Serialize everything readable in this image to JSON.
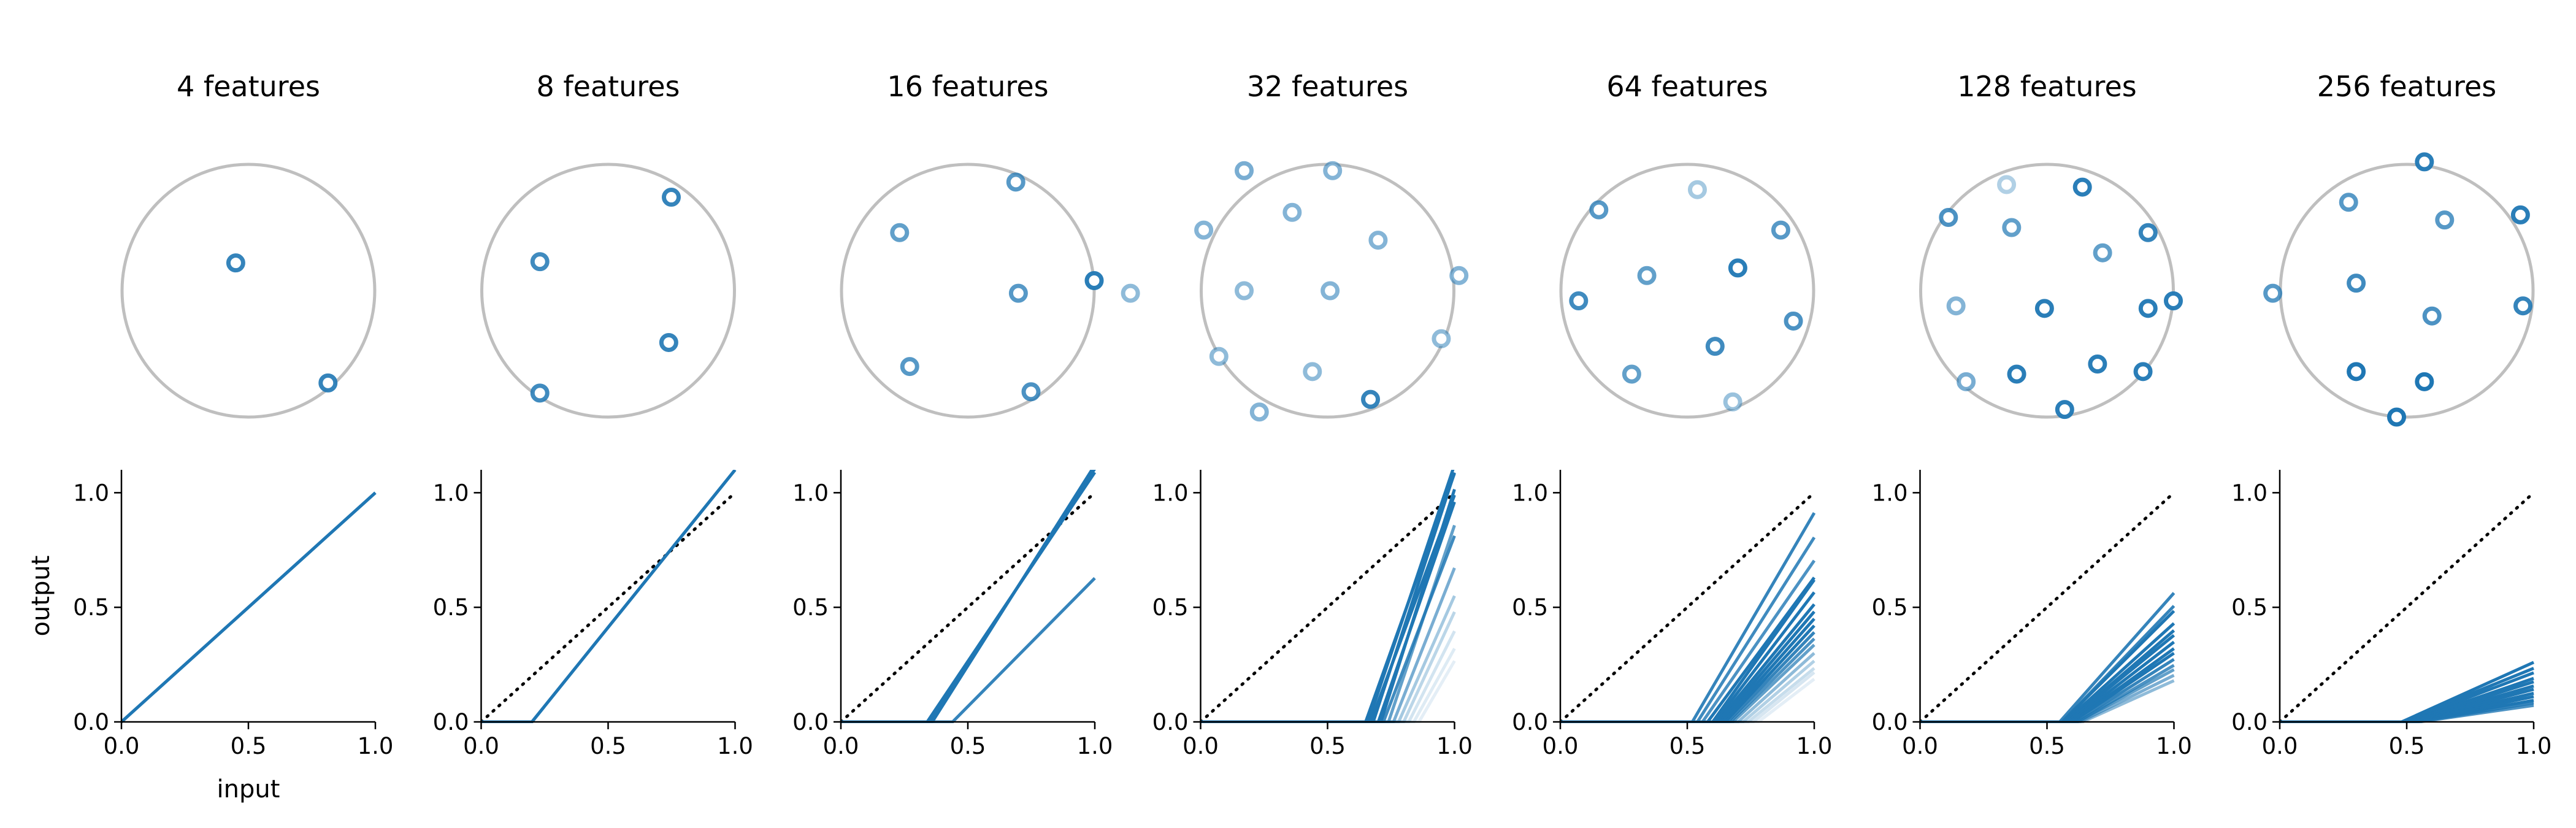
{
  "colors": {
    "accent": "#1f77b4",
    "circle": "#bfbfbf",
    "axis": "#000000",
    "identity": "#000000"
  },
  "shared": {
    "xlabel": "input",
    "ylabel": "output",
    "xticks": [
      "0.0",
      "0.5",
      "1.0"
    ],
    "yticks": [
      "0.0",
      "0.5",
      "1.0"
    ],
    "xlim": [
      0,
      1
    ],
    "ylim": [
      0,
      1.1
    ]
  },
  "chart_data": [
    {
      "title": "4 features",
      "type": "scatter+line",
      "identity_line": false,
      "points": [
        {
          "x": -0.1,
          "y": 0.22,
          "o": 0.9
        },
        {
          "x": 0.63,
          "y": -0.73,
          "o": 0.9
        }
      ],
      "lines": [
        {
          "t": 0.0,
          "s": 1.0,
          "o": 1.0
        },
        {
          "t": 0.0,
          "s": 1.0,
          "o": 1.0
        }
      ]
    },
    {
      "title": "8 features",
      "type": "scatter+line",
      "identity_line": true,
      "points": [
        {
          "x": -0.54,
          "y": 0.23,
          "o": 0.85
        },
        {
          "x": 0.5,
          "y": 0.74,
          "o": 0.9
        },
        {
          "x": 0.48,
          "y": -0.41,
          "o": 0.9
        },
        {
          "x": -0.54,
          "y": -0.81,
          "o": 0.85
        }
      ],
      "lines": [
        {
          "t": 0.2,
          "s": 1.375,
          "o": 1.0
        },
        {
          "t": 0.2,
          "s": 1.375,
          "o": 1.0
        }
      ]
    },
    {
      "title": "16 features",
      "type": "scatter+line",
      "identity_line": true,
      "points": [
        {
          "x": -0.54,
          "y": 0.46,
          "o": 0.7
        },
        {
          "x": 0.38,
          "y": 0.86,
          "o": 0.75
        },
        {
          "x": 1.0,
          "y": 0.08,
          "o": 0.95
        },
        {
          "x": 0.4,
          "y": -0.02,
          "o": 0.75
        },
        {
          "x": -0.46,
          "y": -0.6,
          "o": 0.75
        },
        {
          "x": 0.5,
          "y": -0.8,
          "o": 0.8
        }
      ],
      "lines": [
        {
          "t": 0.34,
          "s": 1.65,
          "o": 1.0
        },
        {
          "t": 0.35,
          "s": 1.7,
          "o": 1.0
        },
        {
          "t": 0.36,
          "s": 1.75,
          "o": 1.0
        },
        {
          "t": 0.44,
          "s": 1.12,
          "o": 0.9
        }
      ]
    },
    {
      "title": "32 features",
      "type": "scatter+line",
      "identity_line": true,
      "points": [
        {
          "x": -0.66,
          "y": 0.95,
          "o": 0.6
        },
        {
          "x": 0.04,
          "y": 0.95,
          "o": 0.55
        },
        {
          "x": -0.98,
          "y": 0.48,
          "o": 0.55
        },
        {
          "x": -0.28,
          "y": 0.62,
          "o": 0.55
        },
        {
          "x": 0.4,
          "y": 0.4,
          "o": 0.55
        },
        {
          "x": 1.04,
          "y": 0.12,
          "o": 0.55
        },
        {
          "x": -1.56,
          "y": -0.02,
          "o": 0.5
        },
        {
          "x": -0.66,
          "y": 0.0,
          "o": 0.5
        },
        {
          "x": 0.02,
          "y": 0.0,
          "o": 0.55
        },
        {
          "x": 0.9,
          "y": -0.38,
          "o": 0.5
        },
        {
          "x": -0.86,
          "y": -0.52,
          "o": 0.5
        },
        {
          "x": -0.12,
          "y": -0.64,
          "o": 0.5
        },
        {
          "x": -0.54,
          "y": -0.96,
          "o": 0.55
        },
        {
          "x": 0.34,
          "y": -0.86,
          "o": 0.9
        }
      ],
      "lines": [
        {
          "t": 0.65,
          "s": 3.1,
          "o": 1.0
        },
        {
          "t": 0.66,
          "s": 3.3,
          "o": 1.0
        },
        {
          "t": 0.67,
          "s": 3.0,
          "o": 1.0
        },
        {
          "t": 0.68,
          "s": 3.4,
          "o": 1.0
        },
        {
          "t": 0.7,
          "s": 3.2,
          "o": 1.0
        },
        {
          "t": 0.71,
          "s": 3.5,
          "o": 1.0
        },
        {
          "t": 0.72,
          "s": 2.9,
          "o": 0.85
        },
        {
          "t": 0.74,
          "s": 3.3,
          "o": 0.7
        },
        {
          "t": 0.76,
          "s": 2.8,
          "o": 0.6
        },
        {
          "t": 0.78,
          "s": 2.5,
          "o": 0.4
        },
        {
          "t": 0.8,
          "s": 2.4,
          "o": 0.3
        },
        {
          "t": 0.82,
          "s": 2.2,
          "o": 0.2
        },
        {
          "t": 0.84,
          "s": 2.0,
          "o": 0.15
        },
        {
          "t": 0.86,
          "s": 1.9,
          "o": 0.12
        }
      ]
    },
    {
      "title": "64 features",
      "type": "scatter+line",
      "identity_line": true,
      "points": [
        {
          "x": -0.7,
          "y": 0.64,
          "o": 0.75
        },
        {
          "x": 0.08,
          "y": 0.8,
          "o": 0.4
        },
        {
          "x": 0.74,
          "y": 0.48,
          "o": 0.75
        },
        {
          "x": -0.32,
          "y": 0.12,
          "o": 0.7
        },
        {
          "x": 0.4,
          "y": 0.18,
          "o": 0.95
        },
        {
          "x": -0.86,
          "y": -0.08,
          "o": 0.85
        },
        {
          "x": 0.84,
          "y": -0.24,
          "o": 0.8
        },
        {
          "x": 0.22,
          "y": -0.44,
          "o": 0.85
        },
        {
          "x": -0.44,
          "y": -0.66,
          "o": 0.7
        },
        {
          "x": 0.36,
          "y": -0.88,
          "o": 0.45
        }
      ],
      "lines": [
        {
          "t": 0.52,
          "s": 1.9,
          "o": 0.9
        },
        {
          "t": 0.54,
          "s": 1.75,
          "o": 0.85
        },
        {
          "t": 0.56,
          "s": 1.6,
          "o": 0.8
        },
        {
          "t": 0.58,
          "s": 1.5,
          "o": 1.0
        },
        {
          "t": 0.6,
          "s": 1.55,
          "o": 1.0
        },
        {
          "t": 0.61,
          "s": 1.45,
          "o": 1.0
        },
        {
          "t": 0.62,
          "s": 1.35,
          "o": 1.0
        },
        {
          "t": 0.63,
          "s": 1.3,
          "o": 1.0
        },
        {
          "t": 0.64,
          "s": 1.25,
          "o": 1.0
        },
        {
          "t": 0.65,
          "s": 1.2,
          "o": 1.0
        },
        {
          "t": 0.66,
          "s": 1.15,
          "o": 0.9
        },
        {
          "t": 0.67,
          "s": 1.1,
          "o": 0.8
        },
        {
          "t": 0.68,
          "s": 1.05,
          "o": 0.7
        },
        {
          "t": 0.7,
          "s": 1.0,
          "o": 0.5
        },
        {
          "t": 0.72,
          "s": 0.95,
          "o": 0.35
        },
        {
          "t": 0.74,
          "s": 0.9,
          "o": 0.25
        },
        {
          "t": 0.76,
          "s": 0.9,
          "o": 0.18
        },
        {
          "t": 0.78,
          "s": 0.85,
          "o": 0.12
        }
      ]
    },
    {
      "title": "128 features",
      "type": "scatter+line",
      "identity_line": true,
      "points": [
        {
          "x": -0.32,
          "y": 0.84,
          "o": 0.35
        },
        {
          "x": 0.28,
          "y": 0.82,
          "o": 0.95
        },
        {
          "x": -0.78,
          "y": 0.58,
          "o": 0.8
        },
        {
          "x": -0.28,
          "y": 0.5,
          "o": 0.7
        },
        {
          "x": 0.44,
          "y": 0.3,
          "o": 0.7
        },
        {
          "x": 0.8,
          "y": 0.46,
          "o": 0.9
        },
        {
          "x": -0.72,
          "y": -0.12,
          "o": 0.55
        },
        {
          "x": -0.02,
          "y": -0.14,
          "o": 0.95
        },
        {
          "x": 0.8,
          "y": -0.14,
          "o": 0.95
        },
        {
          "x": 1.0,
          "y": -0.08,
          "o": 0.95
        },
        {
          "x": -0.64,
          "y": -0.72,
          "o": 0.6
        },
        {
          "x": -0.24,
          "y": -0.66,
          "o": 0.95
        },
        {
          "x": 0.4,
          "y": -0.58,
          "o": 0.95
        },
        {
          "x": 0.76,
          "y": -0.64,
          "o": 0.95
        },
        {
          "x": 0.14,
          "y": -0.94,
          "o": 0.95
        }
      ],
      "lines": [
        {
          "t": 0.55,
          "s": 1.25,
          "o": 0.9
        },
        {
          "t": 0.56,
          "s": 1.15,
          "o": 0.9
        },
        {
          "t": 0.56,
          "s": 1.1,
          "o": 1.0
        },
        {
          "t": 0.57,
          "s": 1.0,
          "o": 1.0
        },
        {
          "t": 0.58,
          "s": 0.95,
          "o": 1.0
        },
        {
          "t": 0.58,
          "s": 0.9,
          "o": 1.0
        },
        {
          "t": 0.59,
          "s": 0.85,
          "o": 1.0
        },
        {
          "t": 0.6,
          "s": 0.8,
          "o": 1.0
        },
        {
          "t": 0.6,
          "s": 0.75,
          "o": 1.0
        },
        {
          "t": 0.61,
          "s": 0.7,
          "o": 0.9
        },
        {
          "t": 0.62,
          "s": 0.65,
          "o": 0.8
        },
        {
          "t": 0.62,
          "s": 0.6,
          "o": 0.7
        },
        {
          "t": 0.63,
          "s": 0.55,
          "o": 0.6
        },
        {
          "t": 0.64,
          "s": 0.5,
          "o": 0.5
        }
      ]
    },
    {
      "title": "256 features",
      "type": "scatter+line",
      "identity_line": true,
      "points": [
        {
          "x": 0.14,
          "y": 1.02,
          "o": 0.95
        },
        {
          "x": -0.46,
          "y": 0.7,
          "o": 0.75
        },
        {
          "x": 0.3,
          "y": 0.56,
          "o": 0.75
        },
        {
          "x": 0.9,
          "y": 0.6,
          "o": 0.95
        },
        {
          "x": -1.06,
          "y": -0.02,
          "o": 0.75
        },
        {
          "x": -0.4,
          "y": 0.06,
          "o": 0.85
        },
        {
          "x": 0.2,
          "y": -0.2,
          "o": 0.8
        },
        {
          "x": 0.92,
          "y": -0.12,
          "o": 0.9
        },
        {
          "x": -0.4,
          "y": -0.64,
          "o": 1.0
        },
        {
          "x": 0.14,
          "y": -0.72,
          "o": 1.0
        },
        {
          "x": -0.08,
          "y": -1.0,
          "o": 1.0
        }
      ],
      "lines": [
        {
          "t": 0.48,
          "s": 0.5,
          "o": 1.0
        },
        {
          "t": 0.48,
          "s": 0.45,
          "o": 1.0
        },
        {
          "t": 0.49,
          "s": 0.42,
          "o": 1.0
        },
        {
          "t": 0.5,
          "s": 0.38,
          "o": 1.0
        },
        {
          "t": 0.5,
          "s": 0.35,
          "o": 1.0
        },
        {
          "t": 0.51,
          "s": 0.32,
          "o": 1.0
        },
        {
          "t": 0.51,
          "s": 0.29,
          "o": 1.0
        },
        {
          "t": 0.52,
          "s": 0.26,
          "o": 1.0
        },
        {
          "t": 0.52,
          "s": 0.23,
          "o": 1.0
        },
        {
          "t": 0.53,
          "s": 0.2,
          "o": 1.0
        },
        {
          "t": 0.54,
          "s": 0.18,
          "o": 0.9
        },
        {
          "t": 0.55,
          "s": 0.16,
          "o": 0.8
        }
      ]
    }
  ]
}
